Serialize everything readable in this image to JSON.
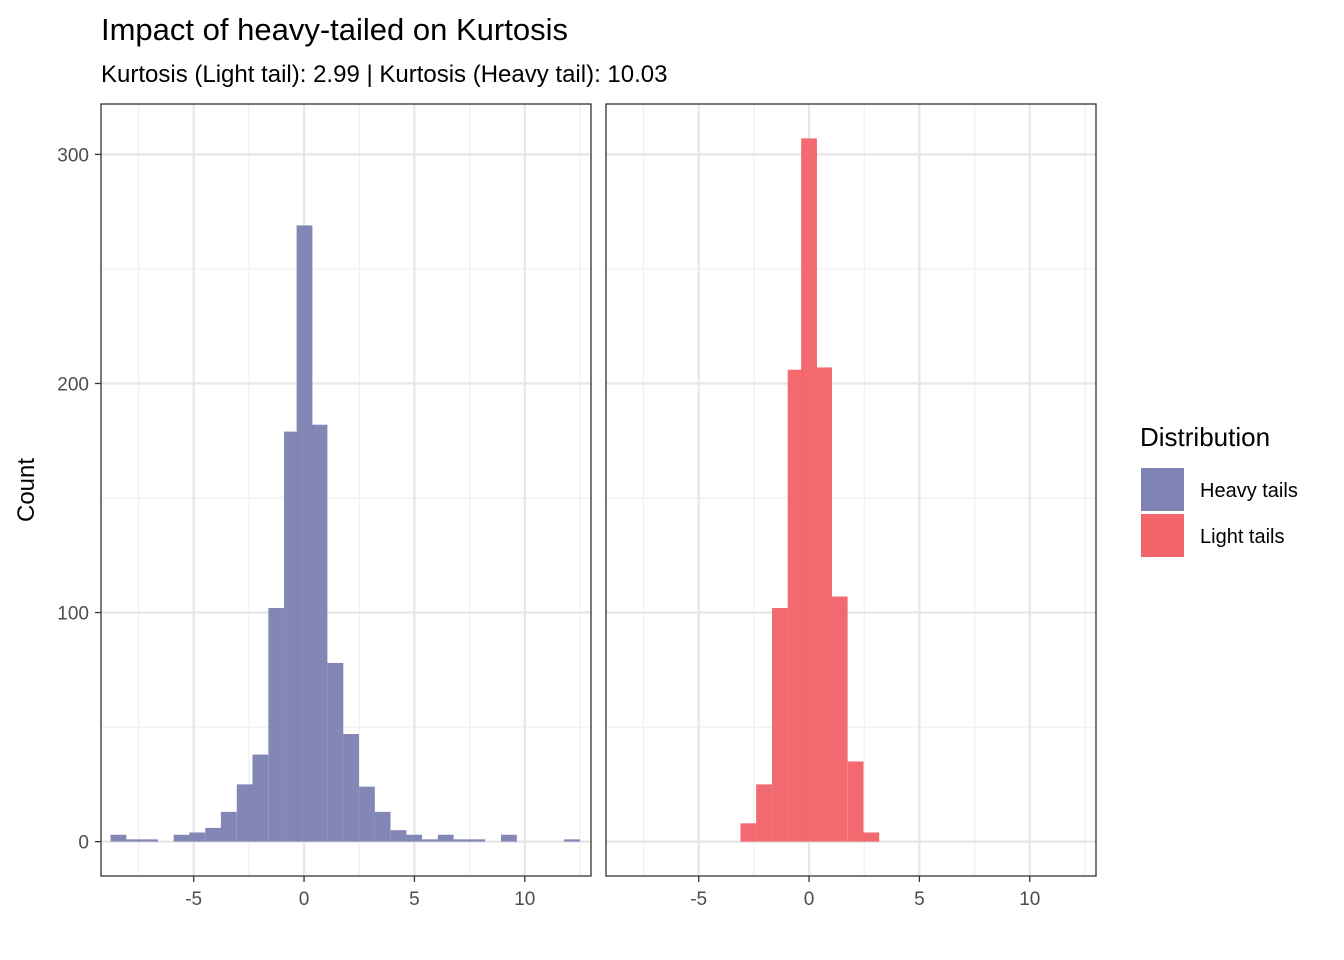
{
  "chart_data": {
    "type": "bar",
    "title": "Impact of heavy-tailed on Kurtosis",
    "subtitle": "Kurtosis (Light tail): 2.99 | Kurtosis (Heavy tail): 10.03",
    "xlabel": "",
    "ylabel": "Count",
    "xlim": [
      -9.2,
      13.0
    ],
    "ylim": [
      -15,
      322
    ],
    "x_ticks": [
      -5,
      0,
      5,
      10
    ],
    "y_ticks": [
      0,
      100,
      200,
      300
    ],
    "x_tick_labels": [
      "-5",
      "0",
      "5",
      "10"
    ],
    "y_tick_labels": [
      "0",
      "100",
      "200",
      "300"
    ],
    "grid": true,
    "bin_width": 0.715,
    "legend": {
      "title": "Distribution",
      "position": "right",
      "entries": [
        {
          "label": "Heavy tails",
          "color": "#7F83B3"
        },
        {
          "label": "Light tails",
          "color": "#F2656B"
        }
      ]
    },
    "series": [
      {
        "name": "Heavy tails",
        "color": "#7F83B3",
        "bins": [
          {
            "x": -8.41,
            "count": 3
          },
          {
            "x": -7.7,
            "count": 1
          },
          {
            "x": -6.98,
            "count": 1
          },
          {
            "x": -6.27,
            "count": 0
          },
          {
            "x": -5.55,
            "count": 3
          },
          {
            "x": -4.84,
            "count": 4
          },
          {
            "x": -4.12,
            "count": 6
          },
          {
            "x": -3.41,
            "count": 13
          },
          {
            "x": -2.69,
            "count": 25
          },
          {
            "x": -1.98,
            "count": 38
          },
          {
            "x": -1.26,
            "count": 102
          },
          {
            "x": -0.55,
            "count": 179
          },
          {
            "x": 0.02,
            "count": 269
          },
          {
            "x": 0.7,
            "count": 182
          },
          {
            "x": 1.42,
            "count": 78
          },
          {
            "x": 2.13,
            "count": 47
          },
          {
            "x": 2.85,
            "count": 24
          },
          {
            "x": 3.56,
            "count": 13
          },
          {
            "x": 4.28,
            "count": 5
          },
          {
            "x": 4.99,
            "count": 3
          },
          {
            "x": 5.71,
            "count": 1
          },
          {
            "x": 6.42,
            "count": 3
          },
          {
            "x": 7.14,
            "count": 1
          },
          {
            "x": 7.85,
            "count": 1
          },
          {
            "x": 8.57,
            "count": 0
          },
          {
            "x": 9.28,
            "count": 3
          },
          {
            "x": 10.0,
            "count": 0
          },
          {
            "x": 10.71,
            "count": 0
          },
          {
            "x": 11.43,
            "count": 0
          },
          {
            "x": 12.14,
            "count": 1
          }
        ]
      },
      {
        "name": "Light tails",
        "color": "#F2656B",
        "bins": [
          {
            "x": -2.75,
            "count": 8
          },
          {
            "x": -2.04,
            "count": 25
          },
          {
            "x": -1.32,
            "count": 102
          },
          {
            "x": -0.61,
            "count": 206
          },
          {
            "x": 0.0,
            "count": 307
          },
          {
            "x": 0.68,
            "count": 207
          },
          {
            "x": 1.39,
            "count": 107
          },
          {
            "x": 2.11,
            "count": 35
          },
          {
            "x": 2.82,
            "count": 4
          }
        ]
      }
    ]
  }
}
